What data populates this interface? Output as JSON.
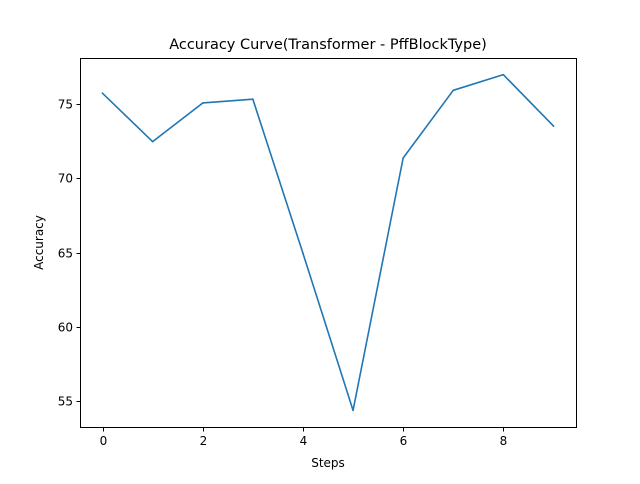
{
  "chart_data": {
    "type": "line",
    "title": "Accuracy Curve(Transformer - PffBlockType)",
    "xlabel": "Steps",
    "ylabel": "Accuracy",
    "x": [
      0,
      1,
      2,
      3,
      4,
      5,
      6,
      7,
      8,
      9
    ],
    "series": [
      {
        "values": [
          75.7,
          72.45,
          75.05,
          75.3,
          64.95,
          54.4,
          71.35,
          75.9,
          76.95,
          73.5
        ],
        "color": "#1f77b4"
      }
    ],
    "xlim": [
      -0.45,
      9.45
    ],
    "ylim": [
      53.28,
      78.07
    ],
    "xticks": [
      0,
      2,
      4,
      6,
      8
    ],
    "yticks": [
      55,
      60,
      65,
      70,
      75
    ],
    "grid": false,
    "legend": "none"
  }
}
